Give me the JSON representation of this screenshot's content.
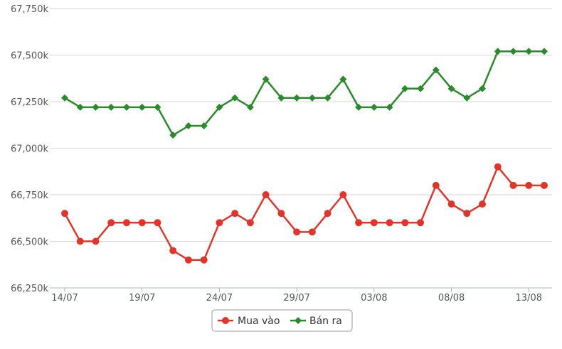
{
  "chart_data": {
    "type": "line",
    "title": "",
    "xlabel": "",
    "ylabel": "",
    "x": [
      "14/07",
      "15/07",
      "16/07",
      "17/07",
      "18/07",
      "19/07",
      "20/07",
      "21/07",
      "22/07",
      "23/07",
      "24/07",
      "25/07",
      "26/07",
      "27/07",
      "28/07",
      "29/07",
      "30/07",
      "31/07",
      "01/08",
      "02/08",
      "03/08",
      "04/08",
      "05/08",
      "06/08",
      "07/08",
      "08/08",
      "09/08",
      "10/08",
      "11/08",
      "12/08",
      "13/08",
      "14/08"
    ],
    "x_tick_labels": [
      "14/07",
      "19/07",
      "24/07",
      "29/07",
      "03/08",
      "08/08",
      "13/08"
    ],
    "y_tick_labels": [
      "66,250k",
      "66,500k",
      "66,750k",
      "67,000k",
      "67,250k",
      "67,500k",
      "67,750k"
    ],
    "y_ticks": [
      66250,
      66500,
      66750,
      67000,
      67250,
      67500,
      67750
    ],
    "ylim": [
      66250,
      67750
    ],
    "grid": "horizontal",
    "legend_position": "bottom-center",
    "series": [
      {
        "name": "Mua vào",
        "color": "#e0352b",
        "marker": "circle",
        "values": [
          66650,
          66500,
          66500,
          66600,
          66600,
          66600,
          66600,
          66450,
          66400,
          66400,
          66600,
          66650,
          66600,
          66750,
          66650,
          66550,
          66550,
          66650,
          66750,
          66600,
          66600,
          66600,
          66600,
          66600,
          66800,
          66700,
          66650,
          66700,
          66900,
          66800,
          66800,
          66800
        ]
      },
      {
        "name": "Bán ra",
        "color": "#2b8a2b",
        "marker": "diamond",
        "values": [
          67270,
          67220,
          67220,
          67220,
          67220,
          67220,
          67220,
          67070,
          67120,
          67120,
          67220,
          67270,
          67220,
          67370,
          67270,
          67270,
          67270,
          67270,
          67370,
          67220,
          67220,
          67220,
          67320,
          67320,
          67420,
          67320,
          67270,
          67320,
          67520,
          67520,
          67520,
          67520
        ]
      }
    ]
  }
}
